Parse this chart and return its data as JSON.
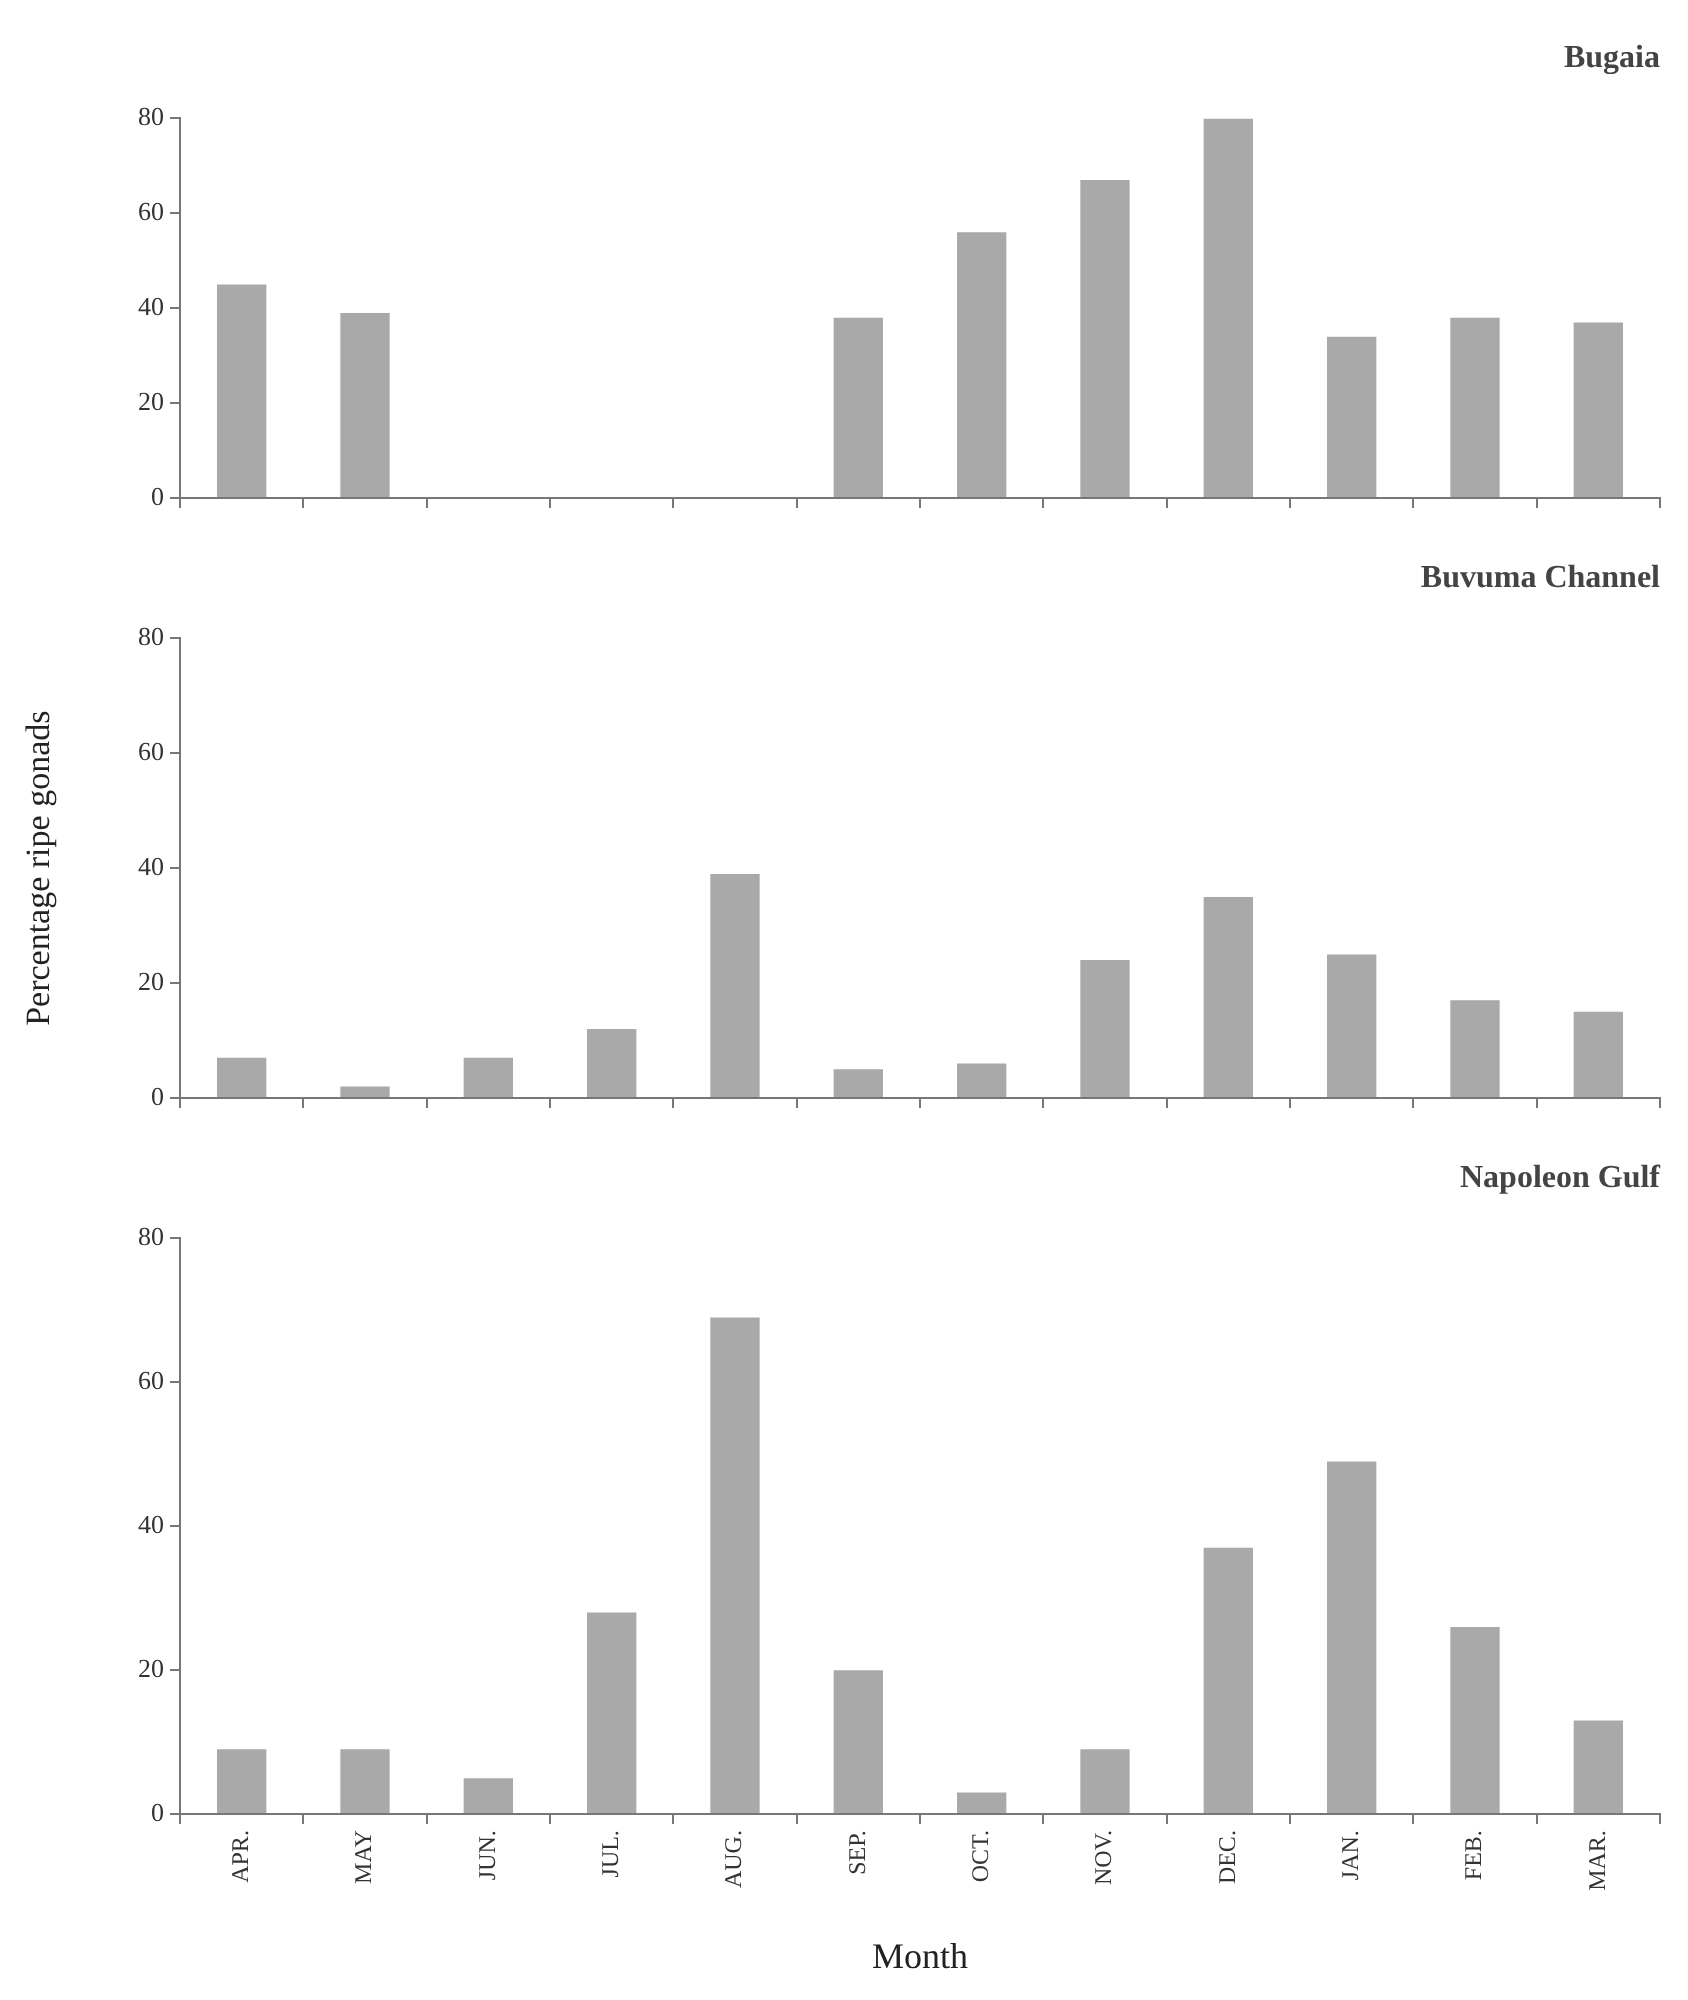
{
  "chart_data": [
    {
      "type": "bar",
      "title": "Bugaia",
      "categories": [
        null,
        null,
        null,
        null,
        null,
        null,
        null,
        null,
        null,
        null,
        null,
        null
      ],
      "values": [
        45,
        39,
        0,
        0,
        0,
        38,
        56,
        67,
        80,
        34,
        38,
        37
      ],
      "color": "#a9a9a9",
      "ylim": [
        0,
        80
      ],
      "yticks": [
        0,
        20,
        40,
        60,
        80
      ],
      "grid": false,
      "tick_labels": "y"
    },
    {
      "type": "bar",
      "title": "Buvuma Channel",
      "ylabel": "Percentage ripe gonads",
      "categories": [
        null,
        null,
        null,
        null,
        null,
        null,
        null,
        null,
        null,
        null,
        null,
        null
      ],
      "values": [
        7,
        2,
        7,
        12,
        39,
        5,
        6,
        24,
        35,
        25,
        17,
        15
      ],
      "color": "#a9a9a9",
      "ylim": [
        0,
        80
      ],
      "yticks": [
        0,
        20,
        40,
        60,
        80
      ],
      "grid": false,
      "tick_labels": "y"
    },
    {
      "type": "bar",
      "title": "Napoleon Gulf",
      "xlabel": "Month",
      "categories": [
        "APR.",
        "MAY",
        "JUN.",
        "JUL.",
        "AUG.",
        "SEP.",
        "OCT.",
        "NOV.",
        "DEC.",
        "JAN.",
        "FEB.",
        "MAR."
      ],
      "values": [
        9,
        9,
        5,
        28,
        69,
        20,
        3,
        9,
        37,
        49,
        26,
        13
      ],
      "color": "#a9a9a9",
      "ylim": [
        0,
        80
      ],
      "yticks": [
        0,
        20,
        40,
        60,
        80
      ],
      "grid": false
    }
  ]
}
